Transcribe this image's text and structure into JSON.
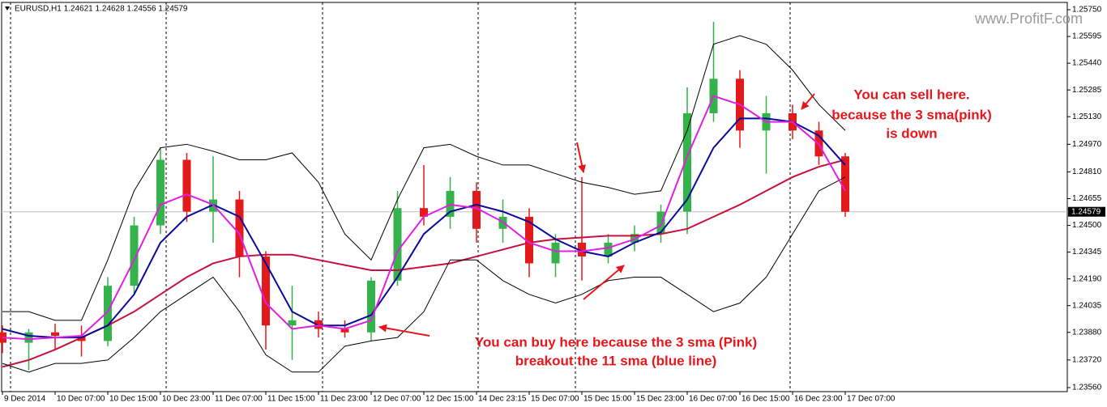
{
  "header": {
    "symbol_line": "EURUSD,H1  1.24621 1.24628 1.24556 1.24579"
  },
  "watermark": "www.ProfitF.com",
  "chart_data": {
    "type": "candlestick",
    "categories": [
      "9 Dec 2014",
      null,
      "10 Dec 07:00",
      null,
      "10 Dec 15:00",
      null,
      "10 Dec 23:00",
      null,
      "11 Dec 07:00",
      null,
      "11 Dec 15:00",
      null,
      "11 Dec 23:00",
      null,
      "12 Dec 07:00",
      null,
      "12 Dec 15:00",
      null,
      "14 Dec 23:15",
      null,
      "15 Dec 07:00",
      null,
      "15 Dec 15:00",
      null,
      "15 Dec 23:00",
      null,
      "16 Dec 07:00",
      null,
      "16 Dec 15:00",
      null,
      "16 Dec 23:00",
      null,
      "17 Dec 07:00"
    ],
    "open": [
      1.2388,
      1.2382,
      1.2388,
      1.2386,
      1.2383,
      1.2415,
      1.245,
      1.2488,
      1.2458,
      1.2465,
      1.2432,
      1.2392,
      1.2395,
      1.239,
      1.2388,
      1.2418,
      1.246,
      1.2455,
      1.247,
      1.2448,
      1.2455,
      1.2428,
      1.244,
      1.2432,
      1.244,
      1.2445,
      1.2458,
      1.2515,
      1.2535,
      1.2505,
      1.2515,
      1.2505,
      1.249
    ],
    "high": [
      1.2392,
      1.239,
      1.2393,
      1.2392,
      1.242,
      1.2455,
      1.2495,
      1.2492,
      1.249,
      1.247,
      1.2435,
      1.2415,
      1.24,
      1.2395,
      1.242,
      1.247,
      1.2485,
      1.2478,
      1.2475,
      1.2465,
      1.246,
      1.2445,
      1.2478,
      1.2445,
      1.245,
      1.2462,
      1.253,
      1.2568,
      1.254,
      1.2525,
      1.252,
      1.251,
      1.2492
    ],
    "low": [
      1.2376,
      1.2366,
      1.2378,
      1.2374,
      1.238,
      1.241,
      1.2445,
      1.2452,
      1.244,
      1.242,
      1.2378,
      1.2372,
      1.2385,
      1.2385,
      1.2383,
      1.2415,
      1.245,
      1.2448,
      1.244,
      1.244,
      1.242,
      1.242,
      1.2418,
      1.2428,
      1.2435,
      1.244,
      1.2445,
      1.251,
      1.2495,
      1.248,
      1.25,
      1.2485,
      1.2455
    ],
    "close": [
      1.2382,
      1.2388,
      1.2386,
      1.2383,
      1.2415,
      1.245,
      1.2488,
      1.2458,
      1.2465,
      1.2432,
      1.2392,
      1.2395,
      1.239,
      1.2388,
      1.2418,
      1.246,
      1.2455,
      1.247,
      1.2448,
      1.2455,
      1.2428,
      1.244,
      1.2432,
      1.244,
      1.2445,
      1.2458,
      1.2515,
      1.2535,
      1.2505,
      1.2515,
      1.2505,
      1.249,
      1.24579
    ],
    "bull_color": "#33b34a",
    "bear_color": "#e3191b",
    "lines": [
      {
        "color": "#c8103c",
        "values": [
          1.2368,
          1.2372,
          1.2378,
          1.2385,
          1.2392,
          1.24,
          1.241,
          1.242,
          1.2428,
          1.2432,
          1.2433,
          1.2433,
          1.243,
          1.2427,
          1.2424,
          1.2424,
          1.2426,
          1.2428,
          1.2432,
          1.2436,
          1.244,
          1.2442,
          1.2443,
          1.2444,
          1.2444,
          1.2445,
          1.2448,
          1.2455,
          1.2462,
          1.247,
          1.2478,
          1.2484,
          1.2488
        ]
      },
      {
        "color": "#000000",
        "values": [
          1.24,
          1.24,
          1.2395,
          1.2395,
          1.243,
          1.247,
          1.2495,
          1.2497,
          1.2493,
          1.2488,
          1.2488,
          1.2492,
          1.2475,
          1.2445,
          1.243,
          1.2465,
          1.2495,
          1.2497,
          1.249,
          1.2485,
          1.2485,
          1.248,
          1.2475,
          1.2472,
          1.2468,
          1.247,
          1.2505,
          1.2555,
          1.256,
          1.2555,
          1.254,
          1.252,
          1.2505
        ]
      },
      {
        "color": "#000000",
        "values": [
          1.237,
          1.2365,
          1.237,
          1.237,
          1.2372,
          1.2385,
          1.24,
          1.241,
          1.242,
          1.24,
          1.2375,
          1.2365,
          1.2365,
          1.238,
          1.2383,
          1.2385,
          1.24,
          1.243,
          1.243,
          1.2418,
          1.241,
          1.2405,
          1.241,
          1.2418,
          1.242,
          1.242,
          1.241,
          1.24,
          1.2405,
          1.242,
          1.2445,
          1.247,
          1.2478
        ]
      },
      {
        "color": "#0a0a9a",
        "values": [
          1.239,
          1.2386,
          1.2385,
          1.2385,
          1.2392,
          1.241,
          1.244,
          1.2455,
          1.2462,
          1.2455,
          1.2428,
          1.24,
          1.2392,
          1.2392,
          1.2398,
          1.242,
          1.2445,
          1.2458,
          1.2462,
          1.2458,
          1.2452,
          1.2442,
          1.2435,
          1.2432,
          1.244,
          1.2446,
          1.2465,
          1.2495,
          1.2512,
          1.2512,
          1.251,
          1.2502,
          1.2485
        ]
      },
      {
        "color": "#e020e0",
        "values": [
          1.2385,
          1.2384,
          1.2385,
          1.2386,
          1.24,
          1.243,
          1.2462,
          1.2468,
          1.2462,
          1.2445,
          1.2405,
          1.239,
          1.2392,
          1.239,
          1.2395,
          1.2435,
          1.2455,
          1.2462,
          1.246,
          1.2452,
          1.244,
          1.2435,
          1.2435,
          1.2437,
          1.2442,
          1.245,
          1.249,
          1.2525,
          1.252,
          1.251,
          1.251,
          1.2497,
          1.247
        ]
      }
    ],
    "current_price": 1.24579,
    "ylim": [
      1.2356,
      1.2575
    ],
    "yticks": [
      {
        "value": 1.2575,
        "label": "1.25750"
      },
      1.25595,
      {
        "value": 1.2544,
        "label": "1.25440"
      },
      1.25285,
      {
        "value": 1.2513,
        "label": "1.25130"
      },
      {
        "value": 1.2497,
        "label": "1.24970"
      },
      {
        "value": 1.2481,
        "label": "1.24810"
      },
      1.24655,
      {
        "value": 1.245,
        "label": "1.24500"
      },
      1.24345,
      {
        "value": 1.2419,
        "label": "1.24190"
      },
      1.24035,
      {
        "value": 1.2388,
        "label": "1.23880"
      },
      {
        "value": 1.2372,
        "label": "1.23720"
      },
      {
        "value": 1.2356,
        "label": "1.23560"
      }
    ],
    "annotations": {
      "sell": [
        "You can sell here.",
        "because the 3 sma(pink)",
        "is down"
      ],
      "buy": [
        "You can buy here because the 3 sma (Pink)",
        "breakout the 11 sma (blue line)"
      ]
    }
  }
}
